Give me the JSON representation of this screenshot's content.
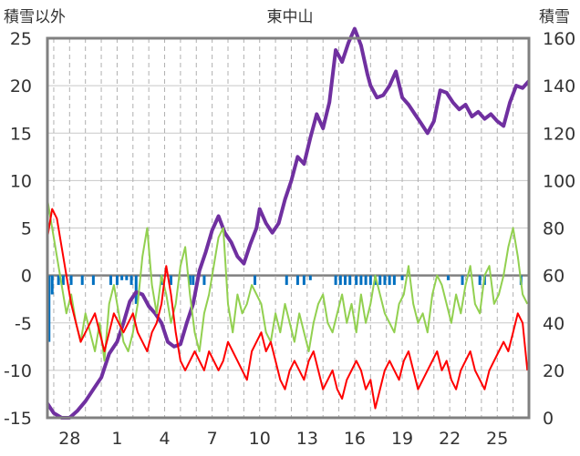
{
  "chart_data": {
    "type": "line",
    "title": "東中山",
    "left_axis_label": "積雪以外",
    "right_axis_label": "積雪",
    "left_ylim": [
      -15,
      25
    ],
    "left_ticks": [
      "25",
      "20",
      "15",
      "10",
      "5",
      "0",
      "-5",
      "-10",
      "-15"
    ],
    "right_ylim": [
      0,
      160
    ],
    "right_ticks": [
      "160",
      "140",
      "120",
      "100",
      "80",
      "60",
      "40",
      "20",
      "0"
    ],
    "x_ticks": [
      "28",
      "1",
      "4",
      "7",
      "10",
      "13",
      "16",
      "19",
      "22",
      "25"
    ],
    "x_tick_days": [
      3,
      6,
      9,
      12,
      15,
      18,
      21,
      24,
      27,
      30
    ],
    "x_range_days": [
      1.6,
      32.0
    ],
    "grid": true,
    "colors": {
      "snow_depth": "#7030a0",
      "temperature": "#ff0000",
      "humidity_like": "#92d050",
      "precip": "#0070c0",
      "frame": "#808080",
      "zero_line": "#808080"
    },
    "series": [
      {
        "key": "snow_depth",
        "axis": "right",
        "x": [
          1.6,
          2.0,
          2.5,
          3.0,
          3.5,
          4.0,
          4.5,
          5.0,
          5.5,
          6.0,
          6.4,
          6.8,
          7.2,
          7.6,
          8.0,
          8.4,
          8.8,
          9.2,
          9.6,
          10.0,
          10.4,
          10.8,
          11.2,
          11.6,
          12.0,
          12.4,
          12.8,
          13.2,
          13.6,
          14.0,
          14.4,
          14.8,
          15.0,
          15.4,
          15.8,
          16.2,
          16.6,
          17.0,
          17.4,
          17.8,
          18.2,
          18.6,
          19.0,
          19.4,
          19.8,
          20.2,
          20.6,
          21.0,
          21.4,
          21.8,
          22.0,
          22.4,
          22.8,
          23.2,
          23.6,
          24.0,
          24.4,
          24.8,
          25.2,
          25.6,
          26.0,
          26.4,
          26.8,
          27.2,
          27.6,
          28.0,
          28.4,
          28.8,
          29.2,
          29.6,
          30.0,
          30.4,
          30.8,
          31.2,
          31.6,
          32.0
        ],
        "values": [
          6,
          2,
          0,
          0,
          3,
          7,
          12,
          17,
          27,
          32,
          40,
          49,
          53,
          52,
          47,
          44,
          40,
          32,
          30,
          31,
          40,
          48,
          62,
          70,
          79,
          85,
          78,
          74,
          68,
          65,
          73,
          80,
          88,
          82,
          78,
          82,
          92,
          100,
          110,
          107,
          118,
          128,
          122,
          133,
          155,
          150,
          158,
          164,
          157,
          145,
          140,
          135,
          136,
          140,
          146,
          135,
          132,
          128,
          124,
          120,
          125,
          138,
          137,
          133,
          130,
          132,
          127,
          129,
          126,
          128,
          125,
          123,
          133,
          140,
          139,
          142
        ]
      },
      {
        "key": "humidity_like",
        "axis": "left",
        "x": [
          1.6,
          1.9,
          2.2,
          2.5,
          2.8,
          3.1,
          3.4,
          3.7,
          4.0,
          4.3,
          4.6,
          4.9,
          5.2,
          5.5,
          5.8,
          6.1,
          6.4,
          6.7,
          7.0,
          7.3,
          7.6,
          7.9,
          8.2,
          8.5,
          8.8,
          9.1,
          9.4,
          9.7,
          10.0,
          10.3,
          10.6,
          10.9,
          11.2,
          11.5,
          11.8,
          12.1,
          12.4,
          12.7,
          13.0,
          13.3,
          13.6,
          13.9,
          14.2,
          14.5,
          14.8,
          15.1,
          15.4,
          15.7,
          16.0,
          16.3,
          16.6,
          16.9,
          17.2,
          17.5,
          17.8,
          18.1,
          18.4,
          18.7,
          19.0,
          19.3,
          19.6,
          19.9,
          20.2,
          20.5,
          20.8,
          21.1,
          21.4,
          21.7,
          22.0,
          22.3,
          22.6,
          22.9,
          23.2,
          23.5,
          23.8,
          24.1,
          24.4,
          24.7,
          25.0,
          25.3,
          25.6,
          25.9,
          26.2,
          26.5,
          26.8,
          27.1,
          27.4,
          27.7,
          28.0,
          28.3,
          28.6,
          28.9,
          29.2,
          29.5,
          29.8,
          30.1,
          30.4,
          30.7,
          31.0,
          31.3,
          31.6,
          31.9
        ],
        "values": [
          8,
          5,
          2,
          -1,
          -4,
          -2,
          -5,
          -7,
          -4,
          -6,
          -8,
          -5,
          -9,
          -3,
          -1,
          -4,
          -7,
          -8,
          -6,
          -3,
          2,
          5,
          -1,
          -4,
          0,
          -2,
          -5,
          -3,
          1,
          3,
          -2,
          -6,
          -8,
          -4,
          -2,
          1,
          4,
          5,
          -3,
          -6,
          -2,
          -4,
          -3,
          -1,
          -2,
          -3,
          -6,
          -7,
          -4,
          -6,
          -3,
          -5,
          -7,
          -4,
          -6,
          -8,
          -5,
          -3,
          -2,
          -5,
          -6,
          -4,
          -2,
          -5,
          -3,
          -6,
          -2,
          -5,
          -3,
          0,
          -2,
          -4,
          -5,
          -6,
          -3,
          -2,
          1,
          -3,
          -5,
          -4,
          -6,
          -2,
          0,
          -1,
          -3,
          -5,
          -2,
          -4,
          -1,
          1,
          -3,
          -4,
          0,
          1,
          -3,
          -2,
          0,
          3,
          5,
          2,
          -2,
          -3
        ]
      },
      {
        "key": "temperature",
        "axis": "left",
        "x": [
          1.6,
          1.9,
          2.2,
          2.5,
          2.8,
          3.1,
          3.4,
          3.7,
          4.0,
          4.3,
          4.6,
          4.9,
          5.2,
          5.5,
          5.8,
          6.1,
          6.4,
          6.7,
          7.0,
          7.3,
          7.6,
          7.9,
          8.2,
          8.5,
          8.8,
          9.1,
          9.4,
          9.7,
          10.0,
          10.3,
          10.6,
          10.9,
          11.2,
          11.5,
          11.8,
          12.1,
          12.4,
          12.7,
          13.0,
          13.3,
          13.6,
          13.9,
          14.2,
          14.5,
          14.8,
          15.1,
          15.4,
          15.7,
          16.0,
          16.3,
          16.6,
          16.9,
          17.2,
          17.5,
          17.8,
          18.1,
          18.4,
          18.7,
          19.0,
          19.3,
          19.6,
          19.9,
          20.2,
          20.5,
          20.8,
          21.1,
          21.4,
          21.7,
          22.0,
          22.3,
          22.6,
          22.9,
          23.2,
          23.5,
          23.8,
          24.1,
          24.4,
          24.7,
          25.0,
          25.3,
          25.6,
          25.9,
          26.2,
          26.5,
          26.8,
          27.1,
          27.4,
          27.7,
          28.0,
          28.3,
          28.6,
          28.9,
          29.2,
          29.5,
          29.8,
          30.1,
          30.4,
          30.7,
          31.0,
          31.3,
          31.6,
          31.9
        ],
        "values": [
          4,
          7,
          6,
          3,
          0,
          -3,
          -5,
          -7,
          -6,
          -5,
          -4,
          -6,
          -8,
          -6,
          -4,
          -5,
          -6,
          -5,
          -4,
          -6,
          -7,
          -8,
          -6,
          -5,
          -3,
          1,
          -2,
          -6,
          -9,
          -10,
          -9,
          -8,
          -9,
          -10,
          -8,
          -9,
          -10,
          -9,
          -7,
          -8,
          -9,
          -10,
          -11,
          -8,
          -7,
          -6,
          -8,
          -7,
          -9,
          -11,
          -12,
          -10,
          -9,
          -10,
          -11,
          -9,
          -8,
          -10,
          -12,
          -11,
          -10,
          -12,
          -13,
          -11,
          -10,
          -9,
          -10,
          -12,
          -11,
          -14,
          -12,
          -10,
          -9,
          -10,
          -11,
          -9,
          -8,
          -10,
          -12,
          -11,
          -10,
          -9,
          -8,
          -10,
          -9,
          -11,
          -12,
          -10,
          -9,
          -8,
          -10,
          -11,
          -12,
          -10,
          -9,
          -8,
          -7,
          -8,
          -6,
          -4,
          -5,
          -10
        ]
      }
    ],
    "precip_bars": {
      "axis": "left",
      "x": [
        1.7,
        1.9,
        2.3,
        2.6,
        3.1,
        3.8,
        4.5,
        5.6,
        6.0,
        6.3,
        6.6,
        6.9,
        7.2,
        8.8,
        9.4,
        10.6,
        10.8,
        11.5,
        14.7,
        16.7,
        17.4,
        17.8,
        18.2,
        19.8,
        20.1,
        20.4,
        20.7,
        21.1,
        21.4,
        21.7,
        22.0,
        22.3,
        22.6,
        22.9,
        23.2,
        23.5,
        24.0,
        26.9,
        27.8,
        28.9,
        29.2,
        31.5
      ],
      "values": [
        -7,
        -2,
        -1,
        -1,
        -1,
        -1,
        -1,
        -1,
        -1,
        -0.5,
        -0.5,
        -1,
        -3,
        -1,
        -1,
        -1,
        -1,
        -1,
        -1,
        -1,
        -1,
        -1,
        -0.5,
        -1,
        -1,
        -1,
        -1,
        -1,
        -1,
        -1,
        -1,
        -1,
        -1,
        -1,
        -1,
        -1,
        -0.5,
        -0.5,
        -1,
        -1,
        -1,
        -1
      ]
    }
  }
}
